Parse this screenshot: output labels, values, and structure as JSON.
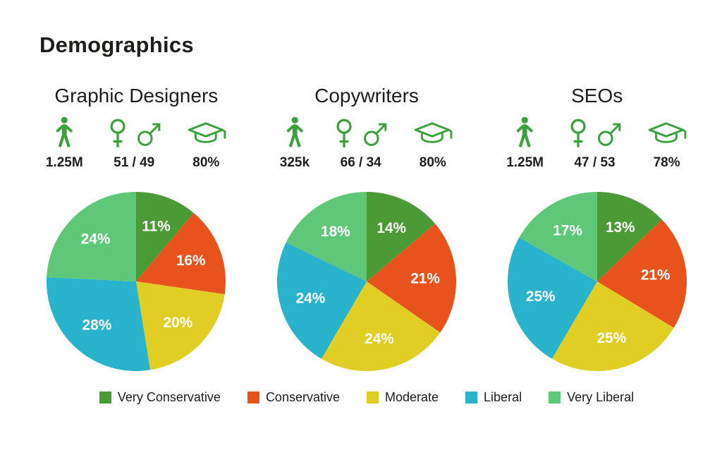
{
  "page": {
    "title": "Demographics"
  },
  "colors": {
    "icon_green": "#3aa23c",
    "text": "#1d1d1b",
    "background": "#ffffff",
    "pie_label": "#ffffff"
  },
  "columns": [
    {
      "name": "Graphic Designers",
      "stats": [
        {
          "icon": "person-icon",
          "value": "1.25M"
        },
        {
          "icon": "female-male-icons",
          "value": "51 / 49"
        },
        {
          "icon": "graduation-cap-icon",
          "value": "80%"
        }
      ]
    },
    {
      "name": "Copywriters",
      "stats": [
        {
          "icon": "person-icon",
          "value": "325k"
        },
        {
          "icon": "female-male-icons",
          "value": "66 / 34"
        },
        {
          "icon": "graduation-cap-icon",
          "value": "80%"
        }
      ]
    },
    {
      "name": "SEOs",
      "stats": [
        {
          "icon": "person-icon",
          "value": "1.25M"
        },
        {
          "icon": "female-male-icons",
          "value": "47 / 53"
        },
        {
          "icon": "graduation-cap-icon",
          "value": "78%"
        }
      ]
    }
  ],
  "chart_data": [
    {
      "type": "pie",
      "title": "Graphic Designers",
      "labels": [
        "Very Conservative",
        "Conservative",
        "Moderate",
        "Liberal",
        "Very Liberal"
      ],
      "values": [
        11,
        16,
        20,
        28,
        24
      ],
      "unit": "%",
      "start_angle": "top",
      "direction": "clockwise"
    },
    {
      "type": "pie",
      "title": "Copywriters",
      "labels": [
        "Very Conservative",
        "Conservative",
        "Moderate",
        "Liberal",
        "Very Liberal"
      ],
      "values": [
        14,
        21,
        24,
        24,
        18
      ],
      "unit": "%",
      "start_angle": "top",
      "direction": "clockwise"
    },
    {
      "type": "pie",
      "title": "SEOs",
      "labels": [
        "Very Conservative",
        "Conservative",
        "Moderate",
        "Liberal",
        "Very Liberal"
      ],
      "values": [
        13,
        21,
        25,
        25,
        17
      ],
      "unit": "%",
      "start_angle": "top",
      "direction": "clockwise"
    }
  ],
  "legend": [
    {
      "label": "Very Conservative",
      "color": "#4a9b35"
    },
    {
      "label": "Conservative",
      "color": "#e8521d"
    },
    {
      "label": "Moderate",
      "color": "#e0ce25"
    },
    {
      "label": "Liberal",
      "color": "#2ab3cd"
    },
    {
      "label": "Very Liberal",
      "color": "#5ec878"
    }
  ]
}
